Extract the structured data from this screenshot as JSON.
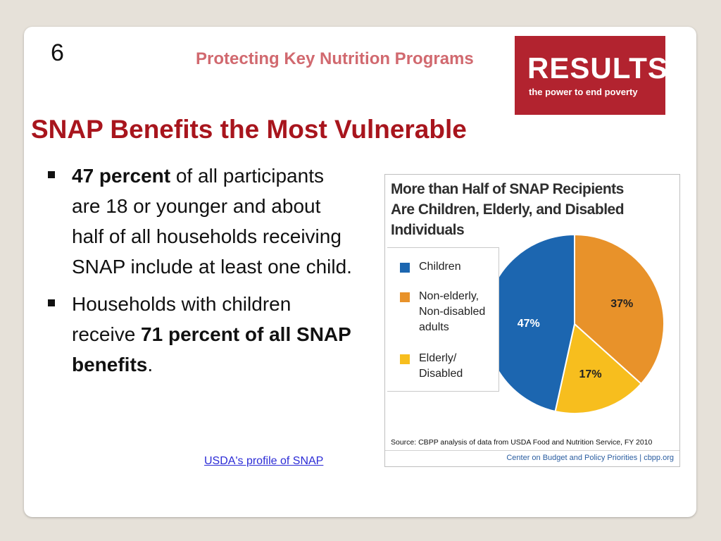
{
  "slide": {
    "number": "6",
    "header_title": "Protecting Key Nutrition Programs",
    "logo": {
      "main": "RESULTS",
      "tagline": "the power to end poverty"
    },
    "heading": "SNAP Benefits the Most Vulnerable",
    "bullets": [
      {
        "bold": "47 percent",
        "text": " of all participants are 18 or younger and about half of all households receiving SNAP include at least one child."
      },
      {
        "text": "Households with children receive ",
        "bold": "71 percent of all SNAP benefits",
        "tail": "."
      }
    ],
    "link": "USDA's profile of SNAP"
  },
  "chart_data": {
    "type": "pie",
    "title_lines": [
      "More than Half of SNAP Recipients",
      "Are Children, Elderly, and Disabled",
      "Individuals"
    ],
    "categories": [
      "Children",
      "Non-elderly, Non-disabled adults",
      "Elderly/ Disabled"
    ],
    "legend_lines": [
      [
        "Children"
      ],
      [
        "Non-elderly,",
        "Non-disabled",
        "adults"
      ],
      [
        "Elderly/",
        "Disabled"
      ]
    ],
    "values": [
      47,
      37,
      17
    ],
    "value_labels": [
      "47%",
      "37%",
      "17%"
    ],
    "colors": [
      "#1c66b0",
      "#e8922a",
      "#f7be1e"
    ],
    "legend_position": "left",
    "source": "Source: CBPP analysis of data from USDA Food and Nutrition Service, FY 2010",
    "footer": "Center on Budget and Policy Priorities | cbpp.org"
  }
}
